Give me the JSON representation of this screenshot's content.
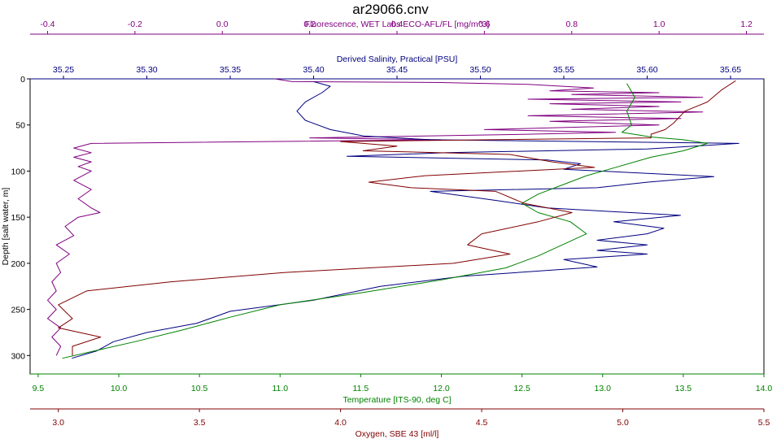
{
  "chart_data": {
    "type": "line",
    "title": "ar29066.cnv",
    "y_axis": {
      "label": "Depth [salt water, m]",
      "range": [
        0,
        320
      ],
      "ticks": [
        0,
        50,
        100,
        150,
        200,
        250,
        300
      ],
      "inverted": true,
      "color": "#000000"
    },
    "x_axes": [
      {
        "id": "fluorescence",
        "label": "Fluorescence, WET Labs ECO-AFL/FL [mg/m^3]",
        "position": "top-1",
        "range": [
          -0.44,
          1.24
        ],
        "ticks": [
          -0.4,
          -0.2,
          0.0,
          0.2,
          0.4,
          0.6,
          0.8,
          1.0,
          1.2
        ],
        "tick_labels": [
          "-0.4",
          "-0.2",
          "0.0",
          "0.2",
          "0.4",
          "0.6",
          "0.8",
          "1.0",
          "1.2"
        ],
        "color": "#800080"
      },
      {
        "id": "salinity",
        "label": "Derived Salinity, Practical [PSU]",
        "position": "top-2",
        "range": [
          35.23,
          35.67
        ],
        "ticks": [
          35.25,
          35.3,
          35.35,
          35.4,
          35.45,
          35.5,
          35.55,
          35.6,
          35.65
        ],
        "tick_labels": [
          "35.25",
          "35.30",
          "35.35",
          "35.40",
          "35.45",
          "35.50",
          "35.55",
          "35.60",
          "35.65"
        ],
        "color": "#000080"
      },
      {
        "id": "temperature",
        "label": "Temperature [ITS-90, deg C]",
        "position": "bottom-1",
        "range": [
          9.45,
          14.0
        ],
        "ticks": [
          9.5,
          10.0,
          10.5,
          11.0,
          11.5,
          12.0,
          12.5,
          13.0,
          13.5,
          14.0
        ],
        "tick_labels": [
          "9.5",
          "10.0",
          "10.5",
          "11.0",
          "11.5",
          "12.0",
          "12.5",
          "13.0",
          "13.5",
          "14.0"
        ],
        "color": "#008000"
      },
      {
        "id": "oxygen",
        "label": "Oxygen, SBE 43 [ml/l]",
        "position": "bottom-2",
        "range": [
          2.9,
          5.5
        ],
        "ticks": [
          3.0,
          3.5,
          4.0,
          4.5,
          5.0,
          5.5
        ],
        "tick_labels": [
          "3.0",
          "3.5",
          "4.0",
          "4.5",
          "5.0",
          "5.5"
        ],
        "color": "#800000"
      }
    ],
    "grid": false,
    "series": [
      {
        "axis": "fluorescence",
        "color": "#800080",
        "points": [
          [
            0.12,
            0
          ],
          [
            0.16,
            3
          ],
          [
            0.5,
            4
          ],
          [
            0.7,
            6
          ],
          [
            0.85,
            10
          ],
          [
            0.75,
            13
          ],
          [
            1.0,
            15
          ],
          [
            0.8,
            17
          ],
          [
            1.1,
            20
          ],
          [
            0.7,
            22
          ],
          [
            1.05,
            25
          ],
          [
            0.75,
            27
          ],
          [
            1.0,
            30
          ],
          [
            0.8,
            33
          ],
          [
            1.1,
            36
          ],
          [
            0.7,
            40
          ],
          [
            1.05,
            43
          ],
          [
            0.75,
            46
          ],
          [
            1.0,
            50
          ],
          [
            0.6,
            55
          ],
          [
            0.9,
            58
          ],
          [
            0.7,
            60
          ],
          [
            0.2,
            64
          ],
          [
            0.5,
            66
          ],
          [
            -0.3,
            70
          ],
          [
            -0.34,
            75
          ],
          [
            -0.3,
            80
          ],
          [
            -0.34,
            85
          ],
          [
            -0.3,
            90
          ],
          [
            -0.33,
            95
          ],
          [
            -0.3,
            100
          ],
          [
            -0.34,
            110
          ],
          [
            -0.3,
            120
          ],
          [
            -0.33,
            130
          ],
          [
            -0.3,
            140
          ],
          [
            -0.28,
            145
          ],
          [
            -0.33,
            150
          ],
          [
            -0.36,
            160
          ],
          [
            -0.34,
            170
          ],
          [
            -0.38,
            180
          ],
          [
            -0.35,
            190
          ],
          [
            -0.38,
            200
          ],
          [
            -0.37,
            210
          ],
          [
            -0.39,
            220
          ],
          [
            -0.38,
            230
          ],
          [
            -0.4,
            240
          ],
          [
            -0.38,
            250
          ],
          [
            -0.4,
            260
          ],
          [
            -0.37,
            270
          ],
          [
            -0.39,
            280
          ],
          [
            -0.37,
            290
          ],
          [
            -0.38,
            300
          ]
        ]
      },
      {
        "axis": "salinity",
        "color": "#000080",
        "points": [
          [
            35.4,
            3
          ],
          [
            35.41,
            8
          ],
          [
            35.405,
            15
          ],
          [
            35.395,
            25
          ],
          [
            35.39,
            35
          ],
          [
            35.395,
            45
          ],
          [
            35.41,
            55
          ],
          [
            35.43,
            62
          ],
          [
            35.47,
            66
          ],
          [
            35.655,
            70
          ],
          [
            35.6,
            76
          ],
          [
            35.48,
            80
          ],
          [
            35.42,
            84
          ],
          [
            35.54,
            88
          ],
          [
            35.56,
            92
          ],
          [
            35.55,
            98
          ],
          [
            35.64,
            106
          ],
          [
            35.6,
            112
          ],
          [
            35.57,
            118
          ],
          [
            35.47,
            122
          ],
          [
            35.51,
            132
          ],
          [
            35.54,
            140
          ],
          [
            35.62,
            148
          ],
          [
            35.58,
            155
          ],
          [
            35.61,
            162
          ],
          [
            35.6,
            168
          ],
          [
            35.57,
            175
          ],
          [
            35.6,
            180
          ],
          [
            35.57,
            186
          ],
          [
            35.6,
            190
          ],
          [
            35.55,
            196
          ],
          [
            35.57,
            204
          ],
          [
            35.49,
            214
          ],
          [
            35.44,
            225
          ],
          [
            35.4,
            240
          ],
          [
            35.35,
            252
          ],
          [
            35.33,
            265
          ],
          [
            35.3,
            275
          ],
          [
            35.28,
            285
          ],
          [
            35.27,
            295
          ],
          [
            35.255,
            303
          ]
        ]
      },
      {
        "axis": "temperature",
        "color": "#008000",
        "points": [
          [
            13.15,
            5
          ],
          [
            13.2,
            20
          ],
          [
            13.15,
            35
          ],
          [
            13.18,
            50
          ],
          [
            13.12,
            58
          ],
          [
            13.3,
            63
          ],
          [
            13.5,
            66
          ],
          [
            13.65,
            70
          ],
          [
            13.5,
            78
          ],
          [
            13.3,
            85
          ],
          [
            13.1,
            95
          ],
          [
            12.9,
            105
          ],
          [
            12.75,
            115
          ],
          [
            12.6,
            125
          ],
          [
            12.5,
            135
          ],
          [
            12.6,
            145
          ],
          [
            12.8,
            155
          ],
          [
            12.9,
            168
          ],
          [
            12.75,
            180
          ],
          [
            12.6,
            192
          ],
          [
            12.4,
            205
          ],
          [
            12.0,
            218
          ],
          [
            11.5,
            232
          ],
          [
            11.0,
            245
          ],
          [
            10.7,
            258
          ],
          [
            10.4,
            272
          ],
          [
            10.1,
            285
          ],
          [
            9.85,
            295
          ],
          [
            9.65,
            303
          ]
        ]
      },
      {
        "axis": "oxygen",
        "color": "#800000",
        "points": [
          [
            5.4,
            2
          ],
          [
            5.35,
            12
          ],
          [
            5.3,
            25
          ],
          [
            5.22,
            35
          ],
          [
            5.18,
            48
          ],
          [
            5.15,
            55
          ],
          [
            5.1,
            60
          ],
          [
            5.1,
            64
          ],
          [
            4.0,
            68
          ],
          [
            4.2,
            73
          ],
          [
            4.08,
            78
          ],
          [
            4.6,
            82
          ],
          [
            4.75,
            90
          ],
          [
            4.9,
            96
          ],
          [
            4.3,
            105
          ],
          [
            4.1,
            112
          ],
          [
            4.25,
            118
          ],
          [
            4.55,
            122
          ],
          [
            4.65,
            135
          ],
          [
            4.82,
            145
          ],
          [
            4.7,
            155
          ],
          [
            4.5,
            168
          ],
          [
            4.45,
            180
          ],
          [
            4.6,
            190
          ],
          [
            4.4,
            200
          ],
          [
            3.8,
            210
          ],
          [
            3.4,
            220
          ],
          [
            3.1,
            230
          ],
          [
            3.0,
            245
          ],
          [
            3.05,
            260
          ],
          [
            3.0,
            270
          ],
          [
            3.15,
            280
          ],
          [
            3.05,
            290
          ],
          [
            3.05,
            300
          ]
        ]
      }
    ]
  }
}
